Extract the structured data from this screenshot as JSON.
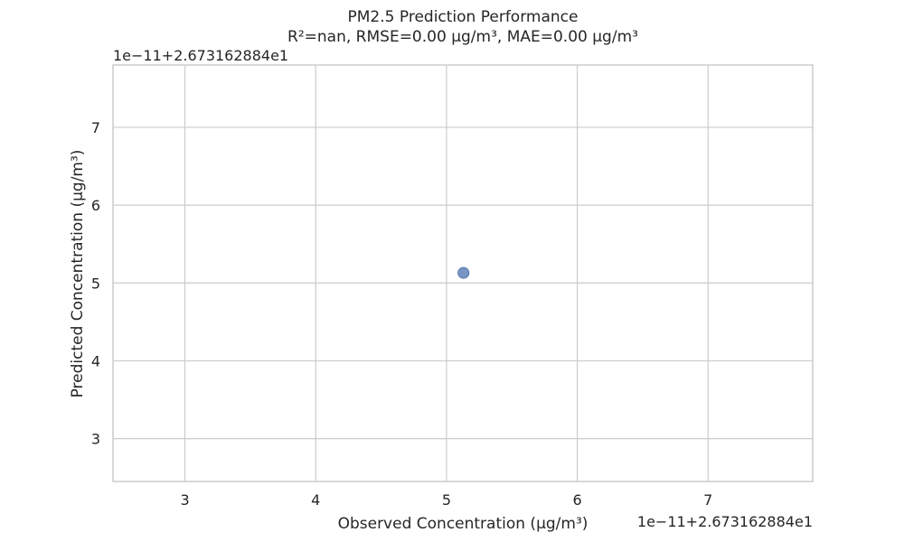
{
  "chart_data": {
    "type": "scatter",
    "title": "PM2.5 Prediction Performance",
    "subtitle": "R²=nan, RMSE=0.00 μg/m³, MAE=0.00 μg/m³",
    "xlabel": "Observed Concentration (μg/m³)",
    "ylabel": "Predicted Concentration (μg/m³)",
    "x_offset_text": "1e−11+2.673162884e1",
    "y_offset_text": "1e−11+2.673162884e1",
    "x_ticks": [
      3,
      4,
      5,
      6,
      7
    ],
    "y_ticks": [
      3,
      4,
      5,
      6,
      7
    ],
    "xlim": [
      2.45,
      7.8
    ],
    "ylim": [
      2.45,
      7.8
    ],
    "grid": true,
    "point_color": "#4c72b0",
    "points": [
      {
        "x": 5.13,
        "y": 5.13
      }
    ]
  }
}
